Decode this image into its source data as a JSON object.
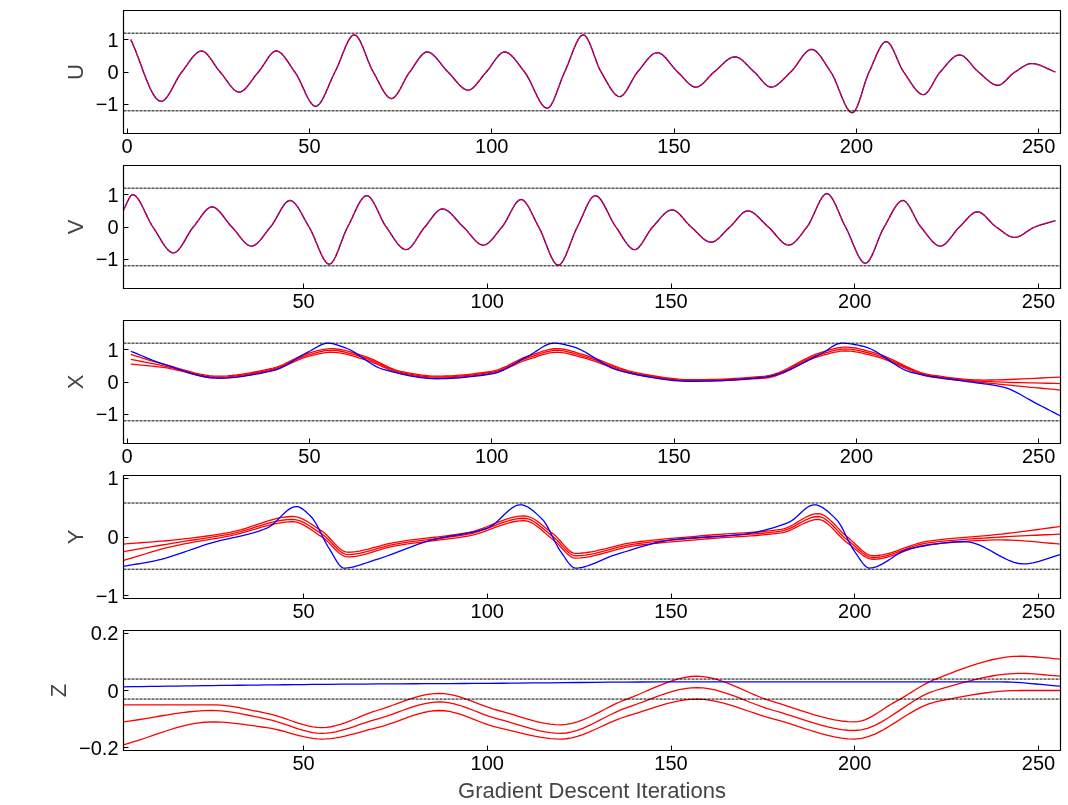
{
  "chart_data": [
    {
      "type": "line",
      "ylabel": "U",
      "xlim": [
        -1,
        256
      ],
      "xticks": [
        0,
        50,
        100,
        150,
        200,
        250
      ],
      "ylim": [
        -1.9,
        1.9
      ],
      "yticks": [
        -1,
        0,
        1
      ],
      "grid": false,
      "x": [
        1,
        9.3,
        15,
        20.4,
        25.5,
        30.7,
        36,
        40.9,
        46,
        51.7,
        57,
        62.3,
        67.5,
        72.5,
        77.5,
        82.3,
        88,
        93.5,
        98.5,
        103.5,
        109,
        115.2,
        120,
        125.1,
        130,
        135.1,
        140,
        145.4,
        151,
        156,
        161,
        166.7,
        172,
        176.6,
        182,
        187.7,
        193,
        198.9,
        203.5,
        208.2,
        213,
        218.4,
        223,
        228.3,
        233.5,
        238.8,
        243.5,
        248.1,
        254.6
      ],
      "series": [
        {
          "color": "#0000ff",
          "line_style": "solid",
          "values": [
            1.0,
            -0.91,
            0,
            0.65,
            0,
            -0.62,
            0,
            0.65,
            0,
            -1.06,
            0,
            1.15,
            0,
            -0.82,
            0,
            0.62,
            0,
            -0.56,
            0,
            0.62,
            0,
            -1.12,
            0,
            1.15,
            0,
            -0.76,
            0,
            0.6,
            0,
            -0.47,
            0,
            0.47,
            0,
            -0.47,
            0,
            0.7,
            0,
            -1.26,
            0,
            0.94,
            0,
            -0.7,
            0,
            0.53,
            0,
            -0.41,
            0,
            0.26,
            0.0
          ]
        },
        {
          "color": "#ff0000",
          "line_style": "dashed",
          "values": [
            1.0,
            -0.91,
            0,
            0.65,
            0,
            -0.62,
            0,
            0.65,
            0,
            -1.06,
            0,
            1.15,
            0,
            -0.82,
            0,
            0.62,
            0,
            -0.56,
            0,
            0.62,
            0,
            -1.12,
            0,
            1.15,
            0,
            -0.76,
            0,
            0.6,
            0,
            -0.47,
            0,
            0.47,
            0,
            -0.47,
            0,
            0.7,
            0,
            -1.26,
            0,
            0.94,
            0,
            -0.7,
            0,
            0.53,
            0,
            -0.41,
            0,
            0.26,
            0.0
          ]
        }
      ],
      "ref_lines": [
        {
          "axis": "y",
          "value": 1.2,
          "color": "#000000",
          "line_style": "dashed"
        },
        {
          "axis": "y",
          "value": -1.2,
          "color": "#000000",
          "line_style": "dashed"
        }
      ]
    },
    {
      "type": "line",
      "ylabel": "V",
      "xlim": [
        1,
        256
      ],
      "xticks": [
        50,
        100,
        150,
        200,
        250
      ],
      "ylim": [
        -1.9,
        1.9
      ],
      "yticks": [
        -1,
        0,
        1
      ],
      "grid": false,
      "x": [
        1,
        3.5,
        9,
        14.6,
        20,
        25.1,
        30.5,
        35.8,
        41,
        46.3,
        51.5,
        57,
        62,
        67.2,
        72.5,
        77.9,
        83,
        87.8,
        93.5,
        98.9,
        104,
        109.2,
        114,
        119.3,
        124.5,
        129.4,
        135,
        140.1,
        145,
        150.3,
        155.5,
        160.9,
        166,
        170.9,
        176.5,
        182,
        187,
        192.4,
        197.5,
        202.9,
        208,
        213.1,
        218,
        223.3,
        228.5,
        233.4,
        238.5,
        243.5,
        249,
        254.6
      ],
      "series": [
        {
          "color": "#0000ff",
          "line_style": "solid",
          "values": [
            0.53,
            1.0,
            0,
            -0.8,
            0,
            0.62,
            0,
            -0.59,
            0,
            0.82,
            0,
            -1.15,
            0,
            0.97,
            0,
            -0.7,
            0,
            0.56,
            0,
            -0.56,
            0,
            0.85,
            0,
            -1.18,
            0,
            0.97,
            0,
            -0.7,
            0,
            0.53,
            0,
            -0.47,
            0,
            0.5,
            0,
            -0.56,
            0,
            1.03,
            0,
            -1.12,
            0,
            0.82,
            0,
            -0.59,
            0,
            0.47,
            0,
            -0.32,
            0,
            0.2
          ]
        },
        {
          "color": "#ff0000",
          "line_style": "dashed",
          "values": [
            0.53,
            1.0,
            0,
            -0.8,
            0,
            0.62,
            0,
            -0.59,
            0,
            0.82,
            0,
            -1.15,
            0,
            0.97,
            0,
            -0.7,
            0,
            0.56,
            0,
            -0.56,
            0,
            0.85,
            0,
            -1.18,
            0,
            0.97,
            0,
            -0.7,
            0,
            0.53,
            0,
            -0.47,
            0,
            0.5,
            0,
            -0.56,
            0,
            1.03,
            0,
            -1.12,
            0,
            0.82,
            0,
            -0.59,
            0,
            0.47,
            0,
            -0.32,
            0,
            0.2
          ]
        }
      ],
      "ref_lines": [
        {
          "axis": "y",
          "value": 1.2,
          "color": "#000000",
          "line_style": "dashed"
        },
        {
          "axis": "y",
          "value": -1.2,
          "color": "#000000",
          "line_style": "dashed"
        }
      ]
    },
    {
      "type": "line",
      "ylabel": "X",
      "xlim": [
        -1,
        256
      ],
      "xticks": [
        0,
        50,
        100,
        150,
        200,
        250
      ],
      "ylim": [
        -1.9,
        1.9
      ],
      "yticks": [
        -1,
        0,
        1
      ],
      "grid": false,
      "series": [
        {
          "color": "#ff0000",
          "line_style": "solid",
          "x": [
            1,
            10,
            25,
            40,
            50,
            56,
            65,
            75,
            85,
            100,
            110,
            118,
            125,
            140,
            155,
            175,
            190,
            197,
            205,
            220,
            235,
            256
          ],
          "values": [
            0.7,
            0.5,
            0.15,
            0.4,
            0.85,
            0.98,
            0.75,
            0.3,
            0.15,
            0.3,
            0.75,
            0.98,
            0.8,
            0.25,
            0.05,
            0.15,
            0.85,
            1.02,
            0.85,
            0.2,
            0.02,
            -0.05
          ]
        },
        {
          "color": "#ff0000",
          "line_style": "solid",
          "x": [
            1,
            10,
            25,
            40,
            50,
            56,
            65,
            75,
            85,
            100,
            110,
            118,
            125,
            140,
            155,
            175,
            190,
            197,
            205,
            220,
            235,
            256
          ],
          "values": [
            0.55,
            0.45,
            0.12,
            0.37,
            0.8,
            0.92,
            0.7,
            0.27,
            0.12,
            0.27,
            0.7,
            0.92,
            0.75,
            0.22,
            0.03,
            0.12,
            0.8,
            0.96,
            0.8,
            0.17,
            -0.02,
            -0.25
          ]
        },
        {
          "color": "#ff0000",
          "line_style": "solid",
          "x": [
            1,
            10,
            25,
            40,
            50,
            56,
            65,
            75,
            85,
            100,
            110,
            118,
            125,
            140,
            155,
            175,
            190,
            197,
            205,
            220,
            235,
            256
          ],
          "values": [
            0.85,
            0.55,
            0.18,
            0.43,
            0.9,
            1.03,
            0.8,
            0.33,
            0.18,
            0.33,
            0.8,
            1.03,
            0.85,
            0.28,
            0.07,
            0.18,
            0.9,
            1.08,
            0.9,
            0.23,
            0.06,
            0.15
          ]
        },
        {
          "color": "#0000ff",
          "line_style": "solid",
          "x": [
            1,
            10,
            25,
            40,
            50,
            55,
            60,
            70,
            85,
            100,
            110,
            117,
            122,
            135,
            155,
            175,
            190,
            196,
            202,
            215,
            230,
            240,
            250,
            256
          ],
          "values": [
            0.95,
            0.55,
            0.12,
            0.35,
            0.95,
            1.2,
            1.05,
            0.4,
            0.1,
            0.25,
            0.8,
            1.2,
            1.1,
            0.35,
            0.02,
            0.15,
            0.85,
            1.2,
            1.1,
            0.3,
            0.02,
            -0.15,
            -0.7,
            -1.05
          ]
        }
      ],
      "ref_lines": [
        {
          "axis": "y",
          "value": 1.2,
          "color": "#000000",
          "line_style": "dashed"
        },
        {
          "axis": "y",
          "value": -1.2,
          "color": "#000000",
          "line_style": "dashed"
        }
      ]
    },
    {
      "type": "line",
      "ylabel": "Y",
      "xlim": [
        1,
        256
      ],
      "xticks": [
        50,
        100,
        150,
        200,
        250
      ],
      "ylim": [
        -1.05,
        1.05
      ],
      "yticks": [
        -1,
        0,
        1
      ],
      "grid": false,
      "series": [
        {
          "color": "#ff0000",
          "line_style": "solid",
          "x": [
            1,
            15,
            30,
            47,
            55,
            62,
            75,
            95,
            110,
            118,
            124,
            140,
            160,
            180,
            190,
            198,
            205,
            220,
            240,
            256
          ],
          "values": [
            -0.25,
            -0.1,
            0.05,
            0.3,
            0.05,
            -0.3,
            -0.12,
            0.05,
            0.32,
            0.0,
            -0.32,
            -0.12,
            0.0,
            0.1,
            0.35,
            -0.05,
            -0.35,
            -0.1,
            0.0,
            0.05
          ]
        },
        {
          "color": "#ff0000",
          "line_style": "solid",
          "x": [
            1,
            15,
            30,
            47,
            55,
            62,
            75,
            95,
            110,
            118,
            124,
            140,
            160,
            180,
            190,
            198,
            205,
            220,
            240,
            256
          ],
          "values": [
            -0.4,
            -0.15,
            0.02,
            0.26,
            0.0,
            -0.34,
            -0.15,
            0.02,
            0.28,
            -0.05,
            -0.36,
            -0.15,
            -0.03,
            0.07,
            0.3,
            -0.1,
            -0.38,
            -0.13,
            -0.05,
            -0.12
          ]
        },
        {
          "color": "#ff0000",
          "line_style": "solid",
          "x": [
            1,
            15,
            30,
            47,
            55,
            62,
            75,
            95,
            110,
            118,
            124,
            140,
            160,
            180,
            190,
            198,
            205,
            220,
            240,
            256
          ],
          "values": [
            -0.12,
            -0.05,
            0.08,
            0.35,
            0.1,
            -0.26,
            -0.09,
            0.08,
            0.36,
            0.05,
            -0.28,
            -0.09,
            0.03,
            0.13,
            0.4,
            0.0,
            -0.32,
            -0.07,
            0.05,
            0.18
          ]
        },
        {
          "color": "#0000ff",
          "line_style": "solid",
          "x": [
            1,
            10,
            25,
            40,
            48,
            52,
            57,
            61,
            70,
            85,
            100,
            109,
            115,
            120,
            124,
            135,
            150,
            170,
            182,
            189,
            195,
            200,
            204,
            215,
            230,
            246,
            256
          ],
          "values": [
            -0.5,
            -0.4,
            -0.1,
            0.15,
            0.52,
            0.35,
            -0.2,
            -0.53,
            -0.38,
            -0.05,
            0.15,
            0.55,
            0.3,
            -0.25,
            -0.53,
            -0.3,
            -0.05,
            0.05,
            0.25,
            0.55,
            0.3,
            -0.25,
            -0.53,
            -0.2,
            -0.08,
            -0.46,
            -0.3
          ]
        }
      ],
      "ref_lines": [
        {
          "axis": "y",
          "value": 0.58,
          "color": "#000000",
          "line_style": "dashed"
        },
        {
          "axis": "y",
          "value": -0.55,
          "color": "#000000",
          "line_style": "dashed"
        }
      ]
    },
    {
      "type": "line",
      "ylabel": "Z",
      "xlabel": "Gradient Descent Iterations",
      "xlim": [
        1,
        256
      ],
      "xticks": [
        50,
        100,
        150,
        200,
        250
      ],
      "ylim": [
        -0.21,
        0.21
      ],
      "yticks": [
        -0.2,
        0,
        0.2
      ],
      "grid": false,
      "series": [
        {
          "color": "#ff0000",
          "line_style": "solid",
          "x": [
            1,
            25,
            40,
            55,
            70,
            87,
            103,
            120,
            138,
            157,
            178,
            200,
            222,
            245,
            256
          ],
          "values": [
            -0.11,
            -0.07,
            -0.1,
            -0.15,
            -0.1,
            -0.04,
            -0.1,
            -0.15,
            -0.06,
            0.01,
            -0.07,
            -0.14,
            0.0,
            0.06,
            0.05
          ]
        },
        {
          "color": "#ff0000",
          "line_style": "solid",
          "x": [
            1,
            25,
            40,
            55,
            70,
            87,
            103,
            120,
            138,
            157,
            178,
            200,
            222,
            245,
            256
          ],
          "values": [
            -0.19,
            -0.11,
            -0.13,
            -0.17,
            -0.13,
            -0.07,
            -0.13,
            -0.17,
            -0.09,
            -0.03,
            -0.1,
            -0.17,
            -0.04,
            0.0,
            0.0
          ]
        },
        {
          "color": "#ff0000",
          "line_style": "solid",
          "x": [
            1,
            25,
            40,
            55,
            70,
            87,
            103,
            120,
            138,
            157,
            178,
            200,
            211,
            222,
            245,
            256
          ],
          "values": [
            -0.05,
            -0.05,
            -0.08,
            -0.13,
            -0.07,
            -0.01,
            -0.07,
            -0.12,
            -0.03,
            0.05,
            -0.04,
            -0.11,
            -0.04,
            0.04,
            0.12,
            0.11
          ]
        },
        {
          "color": "#0000ff",
          "line_style": "solid",
          "x": [
            1,
            30,
            60,
            100,
            150,
            200,
            240,
            256
          ],
          "values": [
            0.013,
            0.018,
            0.022,
            0.025,
            0.03,
            0.03,
            0.03,
            0.015
          ]
        }
      ],
      "ref_lines": [
        {
          "axis": "y",
          "value": 0.04,
          "color": "#000000",
          "line_style": "dashed"
        },
        {
          "axis": "y",
          "value": -0.03,
          "color": "#000000",
          "line_style": "dashed"
        }
      ]
    }
  ]
}
